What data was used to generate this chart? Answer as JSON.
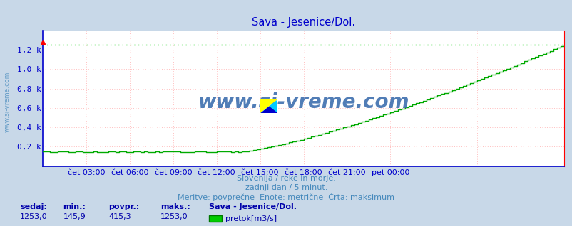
{
  "title": "Sava - Jesenice/Dol.",
  "title_color": "#0000cc",
  "outer_bg_color": "#c8d8e8",
  "plot_bg_color": "#ffffff",
  "grid_color": "#ffaaaa",
  "axis_color_main": "#0000cc",
  "axis_color_right_bottom": "#ff0000",
  "line_color": "#00aa00",
  "max_line_color": "#00cc00",
  "x_min": 0,
  "x_max": 288,
  "y_min": 0,
  "y_max": 1400,
  "y_ticks": [
    0,
    200,
    400,
    600,
    800,
    1000,
    1200
  ],
  "y_tick_labels": [
    "",
    "0,2 k",
    "0,4 k",
    "0,6 k",
    "0,8 k",
    "1,0 k",
    "1,2 k"
  ],
  "x_tick_positions": [
    24,
    48,
    72,
    96,
    120,
    144,
    168,
    192,
    216,
    240,
    264,
    288
  ],
  "x_tick_labels": [
    "čet 03:00",
    "čet 06:00",
    "čet 09:00",
    "čet 12:00",
    "čet 15:00",
    "čet 18:00",
    "čet 21:00",
    "pet 00:00",
    "",
    "",
    "",
    ""
  ],
  "watermark_text": "www.si-vreme.com",
  "watermark_color": "#3366aa",
  "left_label": "www.si-vreme.com",
  "left_label_color": "#4488bb",
  "subtitle1": "Slovenija / reke in morje.",
  "subtitle2": "zadnji dan / 5 minut.",
  "subtitle3": "Meritve: povprečne  Enote: metrične  Črta: maksimum",
  "subtitle_color": "#4488bb",
  "footer_label1": "sedaj:",
  "footer_label2": "min.:",
  "footer_label3": "povpr.:",
  "footer_label4": "maks.:",
  "footer_val1": "1253,0",
  "footer_val2": "145,9",
  "footer_val3": "415,3",
  "footer_val4": "1253,0",
  "footer_series": "Sava - Jesenice/Dol.",
  "footer_unit": "pretok[m3/s]",
  "footer_color": "#0000aa",
  "max_value": 1253,
  "logo_yellow": "#ffff00",
  "logo_cyan": "#00ccff",
  "logo_blue": "#0000cc"
}
